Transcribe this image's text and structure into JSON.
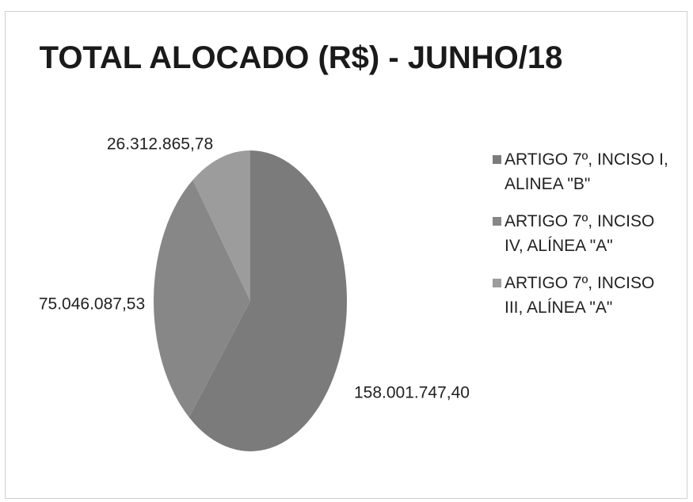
{
  "chart_data": {
    "type": "pie",
    "title": "TOTAL ALOCADO (R$) - JUNHO/18",
    "categories": [
      "ARTIGO 7º, INCISO I, ALINEA \"B\"",
      "ARTIGO 7º, INCISO IV, ALÍNEA \"A\"",
      "ARTIGO 7º, INCISO III, ALÍNEA \"A\""
    ],
    "values": [
      158001747.4,
      75046087.53,
      26312865.78
    ],
    "value_labels": [
      "158.001.747,40",
      "75.046.087,53",
      "26.312.865,78"
    ],
    "colors": [
      "#7b7b7b",
      "#878787",
      "#9c9c9c"
    ],
    "legend": "right"
  }
}
